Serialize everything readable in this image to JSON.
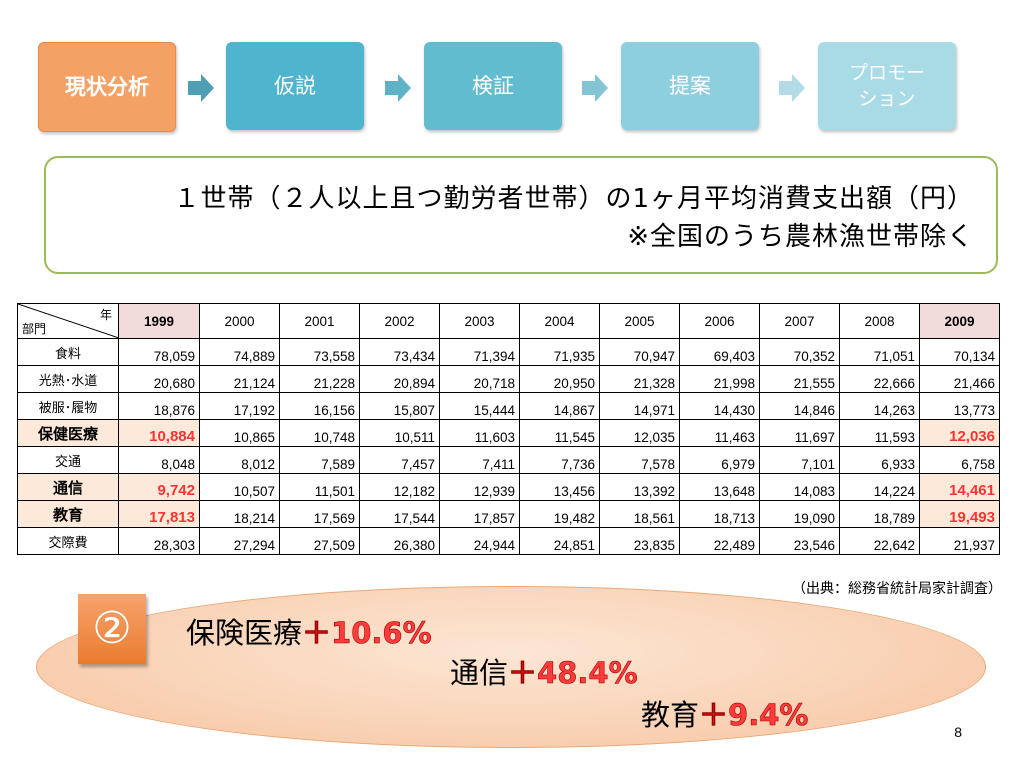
{
  "flow": {
    "steps": [
      {
        "label": "現状分析",
        "state": "active",
        "color": "#f4a166"
      },
      {
        "label": "仮説",
        "state": "inactive",
        "color": "#4fb4cd"
      },
      {
        "label": "検証",
        "state": "inactive",
        "color": "#62bccf"
      },
      {
        "label": "提案",
        "state": "inactive",
        "color": "#8dcfdf"
      },
      {
        "label": "プロモー\nション",
        "state": "inactive",
        "color": "#a9dbe7"
      }
    ]
  },
  "title": {
    "line1": "１世帯（２人以上且つ勤労者世帯）の1ヶ月平均消費支出額（円）",
    "line2": "※全国のうち農林漁世帯除く",
    "border_color": "#9bbb59"
  },
  "table": {
    "corner_year_label": "年",
    "corner_category_label": "部門",
    "years": [
      "1999",
      "2000",
      "2001",
      "2002",
      "2003",
      "2004",
      "2005",
      "2006",
      "2007",
      "2008",
      "2009"
    ],
    "highlight_years": [
      "1999",
      "2009"
    ],
    "rows": [
      {
        "category": "食料",
        "emphasis": false,
        "values": [
          "78,059",
          "74,889",
          "73,558",
          "73,434",
          "71,394",
          "71,935",
          "70,947",
          "69,403",
          "70,352",
          "71,051",
          "70,134"
        ]
      },
      {
        "category": "光熱･水道",
        "emphasis": false,
        "values": [
          "20,680",
          "21,124",
          "21,228",
          "20,894",
          "20,718",
          "20,950",
          "21,328",
          "21,998",
          "21,555",
          "22,666",
          "21,466"
        ]
      },
      {
        "category": "被服･履物",
        "emphasis": false,
        "values": [
          "18,876",
          "17,192",
          "16,156",
          "15,807",
          "15,444",
          "14,867",
          "14,971",
          "14,430",
          "14,846",
          "14,263",
          "13,773"
        ]
      },
      {
        "category": "保健医療",
        "emphasis": true,
        "values": [
          "10,884",
          "10,865",
          "10,748",
          "10,511",
          "11,603",
          "11,545",
          "12,035",
          "11,463",
          "11,697",
          "11,593",
          "12,036"
        ]
      },
      {
        "category": "交通",
        "emphasis": false,
        "values": [
          "8,048",
          "8,012",
          "7,589",
          "7,457",
          "7,411",
          "7,736",
          "7,578",
          "6,979",
          "7,101",
          "6,933",
          "6,758"
        ]
      },
      {
        "category": "通信",
        "emphasis": true,
        "values": [
          "9,742",
          "10,507",
          "11,501",
          "12,182",
          "12,939",
          "13,456",
          "13,392",
          "13,648",
          "14,083",
          "14,224",
          "14,461"
        ]
      },
      {
        "category": "教育",
        "emphasis": true,
        "values": [
          "17,813",
          "18,214",
          "17,569",
          "17,544",
          "17,857",
          "19,482",
          "18,561",
          "18,713",
          "19,090",
          "18,789",
          "19,493"
        ]
      },
      {
        "category": "交際費",
        "emphasis": false,
        "values": [
          "28,303",
          "27,294",
          "27,509",
          "26,380",
          "24,944",
          "24,851",
          "23,835",
          "22,489",
          "23,546",
          "22,642",
          "21,937"
        ]
      }
    ]
  },
  "source": "（出典：総務省統計局家計調査）",
  "conclusion": {
    "badge": "②",
    "items": [
      {
        "label": "保険医療",
        "change": "＋10.6%"
      },
      {
        "label": "通信",
        "change": "＋48.4%"
      },
      {
        "label": "教育",
        "change": "＋9.4%"
      }
    ]
  },
  "page_number": "8"
}
